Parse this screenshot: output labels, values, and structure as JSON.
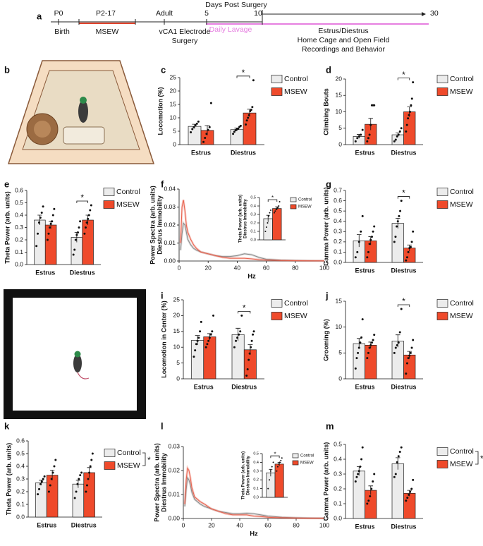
{
  "timeline": {
    "label": "a",
    "title": "Days Post Surgery",
    "labels": [
      "P0",
      "P2-17",
      "Adult",
      "5",
      "10",
      "30",
      "Birth",
      "MSEW",
      "vCA1 Electrode",
      "Surgery",
      "Daily Lavage",
      "Estrus/Diestrus",
      "Home Cage and Open Field",
      "Recordings and Behavior"
    ]
  },
  "illustrations": [
    {
      "label": "b"
    },
    {
      "label": "h"
    }
  ],
  "chart_data": [
    {
      "type": "bar",
      "label": "c",
      "ylabel": [
        "Locomotion (%)"
      ],
      "categories": [
        "Estrus",
        "Diestrus"
      ],
      "ylim": [
        0,
        25
      ],
      "yticks": [
        0,
        5,
        10,
        15,
        20,
        25
      ],
      "annotation": "*",
      "series": [
        {
          "name": "Control",
          "color": "#ececec",
          "values": [
            6.8,
            5.6
          ],
          "errors": [
            0.8,
            0.6
          ],
          "points": [
            [
              4.6,
              5.8,
              6.5,
              7.2,
              7.8,
              8.6
            ],
            [
              4.0,
              4.8,
              5.4,
              5.8,
              6.0,
              6.6,
              7.0
            ]
          ]
        },
        {
          "name": "MSEW",
          "color": "#ef4a2b",
          "values": [
            5.3,
            11.8
          ],
          "errors": [
            1.8,
            1.4
          ],
          "points": [
            [
              1.0,
              2.5,
              4.0,
              5.5,
              6.5,
              15.5
            ],
            [
              7.5,
              9,
              10,
              11,
              12.5,
              13,
              14,
              24
            ]
          ]
        }
      ]
    },
    {
      "type": "bar",
      "label": "d",
      "ylabel": [
        "Climbing Bouts"
      ],
      "categories": [
        "Estrus",
        "Diestrus"
      ],
      "ylim": [
        0,
        20
      ],
      "yticks": [
        0,
        5,
        10,
        15,
        20
      ],
      "annotation": "*",
      "series": [
        {
          "name": "Control",
          "color": "#ececec",
          "values": [
            2.5,
            3.0
          ],
          "errors": [
            0.6,
            0.6
          ],
          "points": [
            [
              1,
              2,
              2.5,
              3,
              4.5
            ],
            [
              1,
              1.5,
              2.5,
              3,
              4,
              5
            ]
          ]
        },
        {
          "name": "MSEW",
          "color": "#ef4a2b",
          "values": [
            6.2,
            10
          ],
          "errors": [
            1.8,
            1.5
          ],
          "points": [
            [
              1,
              2,
              3,
              6,
              12,
              12,
              12
            ],
            [
              4,
              6,
              8,
              9,
              10,
              12,
              14,
              19
            ]
          ]
        }
      ]
    },
    {
      "type": "bar",
      "label": "e",
      "ylabel": [
        "Theta Power (arb. units)"
      ],
      "categories": [
        "Estrus",
        "Diestrus"
      ],
      "ylim": [
        0,
        0.6
      ],
      "yticks": [
        {
          "value": 0,
          "label": "0.0"
        },
        0.1,
        0.2,
        0.3,
        0.4,
        0.5,
        0.6
      ],
      "annotation": "*",
      "series": [
        {
          "name": "Control",
          "color": "#ececec",
          "values": [
            0.36,
            0.22
          ],
          "errors": [
            0.04,
            0.04
          ],
          "points": [
            [
              0.15,
              0.25,
              0.34,
              0.38,
              0.42,
              0.47
            ],
            [
              0.08,
              0.12,
              0.2,
              0.24,
              0.26,
              0.3,
              0.35
            ]
          ]
        },
        {
          "name": "MSEW",
          "color": "#ef4a2b",
          "values": [
            0.32,
            0.36
          ],
          "errors": [
            0.03,
            0.04
          ],
          "points": [
            [
              0.2,
              0.25,
              0.3,
              0.33,
              0.35,
              0.4,
              0.45
            ],
            [
              0.25,
              0.3,
              0.34,
              0.37,
              0.4,
              0.44,
              0.48
            ]
          ]
        }
      ]
    },
    {
      "type": "line",
      "label": "f",
      "ylabel": [
        "Power Spectra (arb. units)",
        "Diestrus Immobility"
      ],
      "xlabel": "Hz",
      "xlim": [
        0,
        100
      ],
      "xticks": [
        0,
        20,
        40,
        60,
        80,
        100
      ],
      "ylim": [
        0,
        0.04
      ],
      "yticks": [
        {
          "value": 0,
          "label": "0.00"
        },
        0.01,
        0.02,
        0.03,
        0.04
      ],
      "x": [
        1,
        2,
        3,
        4,
        5,
        6,
        8,
        10,
        12,
        15,
        20,
        25,
        30,
        35,
        40,
        45,
        50,
        55,
        60,
        70,
        80,
        90,
        100
      ],
      "series": [
        {
          "color": "#8a8a8a",
          "values": [
            0.006,
            0.015,
            0.021,
            0.02,
            0.016,
            0.012,
            0.009,
            0.007,
            0.006,
            0.005,
            0.004,
            0.003,
            0.0025,
            0.0025,
            0.003,
            0.004,
            0.0035,
            0.002,
            0.001,
            0.0005,
            0.0003,
            0.0002,
            0.0001
          ]
        },
        {
          "color": "#e8604c",
          "values": [
            0.01,
            0.03,
            0.034,
            0.028,
            0.02,
            0.016,
            0.012,
            0.009,
            0.007,
            0.005,
            0.004,
            0.003,
            0.002,
            0.0015,
            0.0015,
            0.0015,
            0.0012,
            0.0008,
            0.0005,
            0.0003,
            0.0002,
            0.0001,
            0.0001
          ]
        }
      ],
      "inset": {
        "type": "bar",
        "ylabel": [
          "Theta Power (arb. units)",
          "Diestrus Immobility"
        ],
        "categories": [
          null
        ],
        "ylim": [
          0,
          0.5
        ],
        "yticks": [
          {
            "value": 0,
            "label": "0.0"
          },
          0.1,
          0.2,
          0.3,
          0.4,
          0.5
        ],
        "annotation": "*",
        "series": [
          {
            "name": "Control",
            "color": "#ececec",
            "values": [
              0.25
            ],
            "errors": [
              0.04
            ],
            "points": [
              [
                0.1,
                0.15,
                0.2,
                0.28,
                0.32,
                0.35
              ]
            ]
          },
          {
            "name": "MSEW",
            "color": "#ef4a2b",
            "values": [
              0.37
            ],
            "errors": [
              0.02
            ],
            "points": [
              [
                0.32,
                0.34,
                0.36,
                0.37,
                0.38,
                0.4,
                0.45
              ]
            ]
          }
        ]
      }
    },
    {
      "type": "bar",
      "label": "g",
      "ylabel": [
        "Gamma Power (arb. units)"
      ],
      "categories": [
        "Estrus",
        "Diestrus"
      ],
      "ylim": [
        0,
        0.7
      ],
      "yticks": [
        {
          "value": 0,
          "label": "0.0"
        },
        0.1,
        0.2,
        0.3,
        0.4,
        0.5,
        0.6,
        0.7
      ],
      "annotation": "*",
      "series": [
        {
          "name": "Control",
          "color": "#ececec",
          "values": [
            0.21,
            0.38
          ],
          "errors": [
            0.06,
            0.05
          ],
          "points": [
            [
              0.05,
              0.1,
              0.2,
              0.3,
              0.45
            ],
            [
              0.2,
              0.25,
              0.35,
              0.4,
              0.45,
              0.5,
              0.6
            ]
          ]
        },
        {
          "name": "MSEW",
          "color": "#ef4a2b",
          "values": [
            0.21,
            0.14
          ],
          "errors": [
            0.04,
            0.03
          ],
          "points": [
            [
              0.05,
              0.1,
              0.18,
              0.22,
              0.25,
              0.3,
              0.35
            ],
            [
              0.02,
              0.05,
              0.1,
              0.14,
              0.15,
              0.2,
              0.3
            ]
          ]
        }
      ]
    },
    {
      "type": "bar",
      "label": "i",
      "ylabel": [
        "Locomotion in Center (%)"
      ],
      "categories": [
        "Estrus",
        "Diestrus"
      ],
      "ylim": [
        0,
        25
      ],
      "yticks": [
        0,
        5,
        10,
        15,
        20,
        25
      ],
      "annotation": "*",
      "series": [
        {
          "name": "Control",
          "color": "#ececec",
          "values": [
            12.2,
            14
          ],
          "errors": [
            1.5,
            2
          ],
          "points": [
            [
              7,
              9,
              11,
              12,
              13,
              15,
              18
            ],
            [
              10,
              12,
              13,
              14,
              15,
              20
            ]
          ]
        },
        {
          "name": "MSEW",
          "color": "#ef4a2b",
          "values": [
            13.3,
            9.2
          ],
          "errors": [
            1.0,
            1.6
          ],
          "points": [
            [
              10,
              11,
              12,
              13,
              14,
              15,
              20
            ],
            [
              1,
              3,
              6,
              8,
              10,
              12,
              14,
              15
            ]
          ]
        }
      ]
    },
    {
      "type": "bar",
      "label": "j",
      "ylabel": [
        "Grooming (%)"
      ],
      "categories": [
        "Estrus",
        "Diestrus"
      ],
      "ylim": [
        0,
        15
      ],
      "yticks": [
        0,
        5,
        10,
        15
      ],
      "annotation": "*",
      "series": [
        {
          "name": "Control",
          "color": "#ececec",
          "values": [
            6.8,
            7.3
          ],
          "errors": [
            1.0,
            1.2
          ],
          "points": [
            [
              2,
              4,
              5,
              6,
              7,
              8,
              11.5
            ],
            [
              5,
              6,
              6.5,
              7,
              9,
              13.5
            ]
          ]
        },
        {
          "name": "MSEW",
          "color": "#ef4a2b",
          "values": [
            6.5,
            4.6
          ],
          "errors": [
            0.6,
            0.7
          ],
          "points": [
            [
              4,
              5,
              6,
              6.5,
              7,
              7.5,
              8.5
            ],
            [
              1,
              3,
              4,
              4.5,
              5,
              6,
              7.5
            ]
          ]
        }
      ]
    },
    {
      "type": "bar",
      "label": "k",
      "ylabel": [
        "Theta Power (arb. units)"
      ],
      "categories": [
        "Estrus",
        "Diestrus"
      ],
      "ylim": [
        0,
        0.6
      ],
      "yticks": [
        {
          "value": 0,
          "label": "0.0"
        },
        0.1,
        0.2,
        0.3,
        0.4,
        0.5,
        0.6
      ],
      "legend_annotation": "*",
      "series": [
        {
          "name": "Control",
          "color": "#ececec",
          "values": [
            0.27,
            0.26
          ],
          "errors": [
            0.02,
            0.03
          ],
          "points": [
            [
              0.18,
              0.22,
              0.26,
              0.28,
              0.3,
              0.32
            ],
            [
              0.15,
              0.2,
              0.26,
              0.3,
              0.33,
              0.35
            ]
          ]
        },
        {
          "name": "MSEW",
          "color": "#ef4a2b",
          "values": [
            0.33,
            0.35
          ],
          "errors": [
            0.04,
            0.04
          ],
          "points": [
            [
              0.2,
              0.25,
              0.3,
              0.35,
              0.4,
              0.45
            ],
            [
              0.2,
              0.25,
              0.3,
              0.35,
              0.4,
              0.45,
              0.5
            ]
          ]
        }
      ]
    },
    {
      "type": "line",
      "label": "l",
      "ylabel": [
        "Power Spectra (arb. units)",
        "Diestrus Immobility"
      ],
      "xlabel": "Hz",
      "xlim": [
        0,
        100
      ],
      "xticks": [
        0,
        20,
        40,
        60,
        80,
        100
      ],
      "ylim": [
        0,
        0.03
      ],
      "yticks": [
        {
          "value": 0,
          "label": "0.00"
        },
        0.01,
        0.02,
        0.03
      ],
      "x": [
        1,
        2,
        3,
        4,
        5,
        6,
        8,
        10,
        12,
        15,
        20,
        25,
        30,
        35,
        40,
        45,
        50,
        55,
        60,
        70,
        80,
        90,
        100
      ],
      "series": [
        {
          "color": "#8a8a8a",
          "values": [
            0.005,
            0.012,
            0.017,
            0.016,
            0.014,
            0.011,
            0.008,
            0.007,
            0.006,
            0.005,
            0.004,
            0.003,
            0.0025,
            0.002,
            0.002,
            0.0022,
            0.002,
            0.0015,
            0.001,
            0.0005,
            0.0003,
            0.0002,
            0.0001
          ]
        },
        {
          "color": "#e8604c",
          "values": [
            0.006,
            0.016,
            0.021,
            0.02,
            0.017,
            0.013,
            0.009,
            0.008,
            0.007,
            0.006,
            0.004,
            0.003,
            0.002,
            0.0015,
            0.0015,
            0.0015,
            0.001,
            0.0008,
            0.0005,
            0.0003,
            0.0002,
            0.0001,
            0.0001
          ]
        }
      ],
      "inset": {
        "type": "bar",
        "ylabel": [
          "Theta Power (arb. units)",
          "Diestrus Immobility"
        ],
        "categories": [
          null
        ],
        "ylim": [
          0,
          0.5
        ],
        "yticks": [
          {
            "value": 0,
            "label": "0.0"
          },
          0.1,
          0.2,
          0.3,
          0.4,
          0.5
        ],
        "annotation": "*",
        "series": [
          {
            "name": "Control",
            "color": "#ececec",
            "values": [
              0.28
            ],
            "errors": [
              0.04
            ],
            "points": [
              [
                0.1,
                0.2,
                0.3,
                0.35,
                0.4
              ]
            ]
          },
          {
            "name": "MSEW",
            "color": "#ef4a2b",
            "values": [
              0.38
            ],
            "errors": [
              0.02
            ],
            "points": [
              [
                0.3,
                0.35,
                0.38,
                0.4,
                0.42,
                0.45
              ]
            ]
          }
        ]
      }
    },
    {
      "type": "bar",
      "label": "m",
      "ylabel": [
        "Gamma Power (arb. units)"
      ],
      "categories": [
        "Estrus",
        "Diestrus"
      ],
      "ylim": [
        0,
        0.5
      ],
      "yticks": [
        {
          "value": 0,
          "label": "0.0"
        },
        0.1,
        0.2,
        0.3,
        0.4,
        0.5
      ],
      "legend_annotation": "*",
      "series": [
        {
          "name": "Control",
          "color": "#ececec",
          "values": [
            0.32,
            0.37
          ],
          "errors": [
            0.03,
            0.04
          ],
          "points": [
            [
              0.25,
              0.28,
              0.3,
              0.32,
              0.35,
              0.4,
              0.48
            ],
            [
              0.28,
              0.3,
              0.38,
              0.42,
              0.45,
              0.48
            ]
          ]
        },
        {
          "name": "MSEW",
          "color": "#ef4a2b",
          "values": [
            0.19,
            0.17
          ],
          "errors": [
            0.03,
            0.02
          ],
          "points": [
            [
              0.1,
              0.12,
              0.15,
              0.2,
              0.25,
              0.3
            ],
            [
              0.12,
              0.14,
              0.16,
              0.18,
              0.2,
              0.26
            ]
          ]
        }
      ]
    }
  ]
}
